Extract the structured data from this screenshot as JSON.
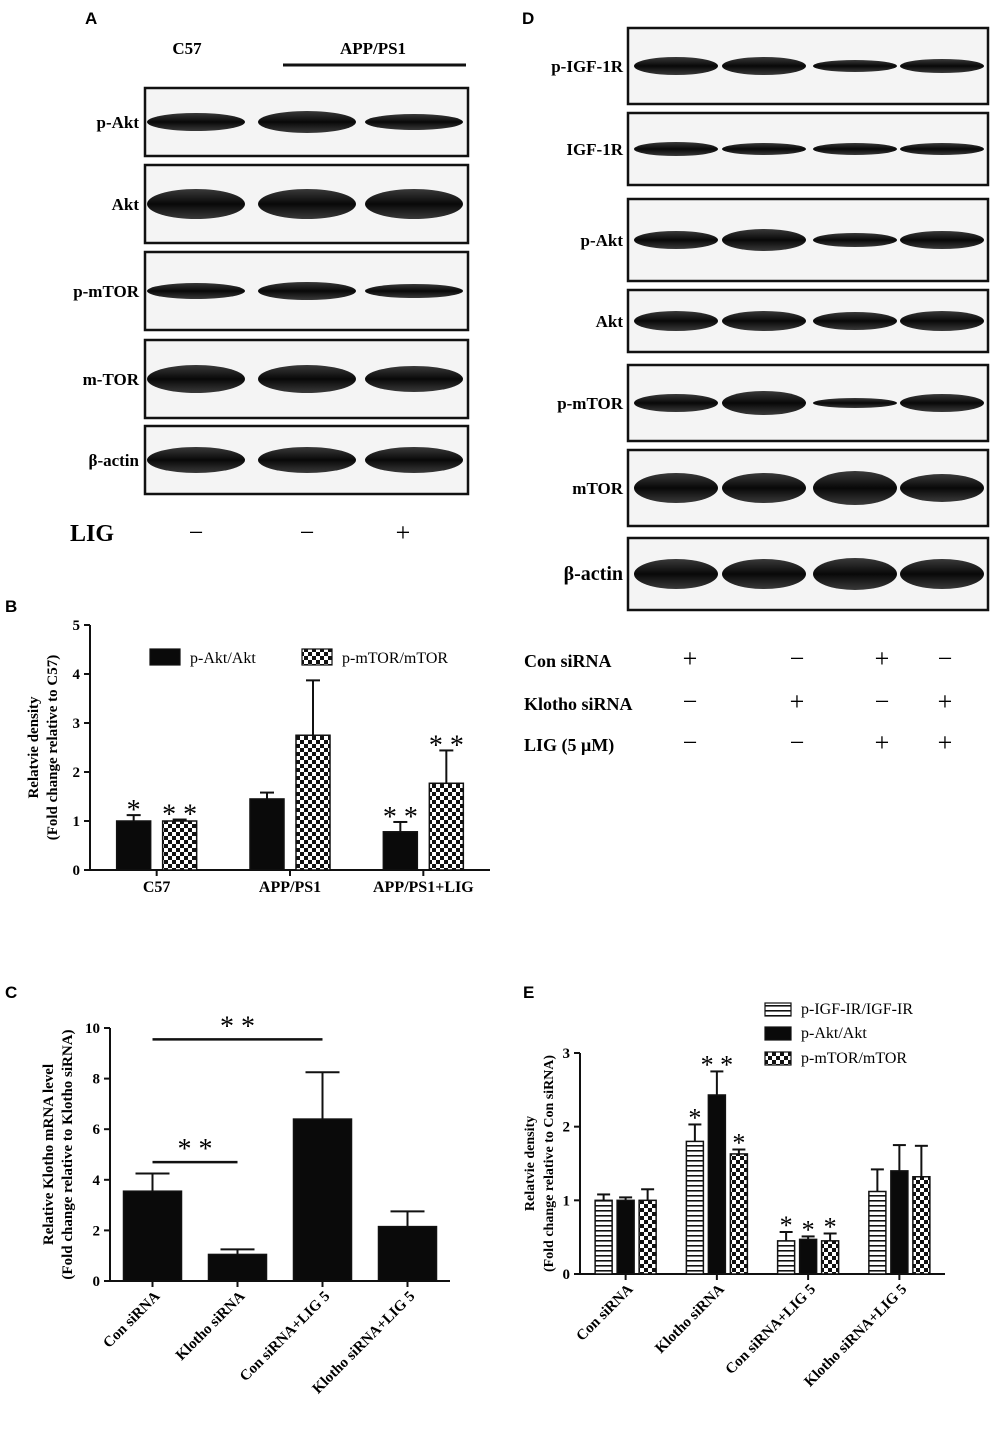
{
  "panels": {
    "A": {
      "letter": "A",
      "groups": [
        "C57",
        "APP/PS1"
      ],
      "rows": [
        "p-Akt",
        "Akt",
        "p-mTOR",
        "m-TOR",
        "β-actin"
      ],
      "treatment": {
        "label": "LIG",
        "signs": [
          "−",
          "−",
          "+"
        ]
      }
    },
    "D": {
      "letter": "D",
      "rows": [
        "p-IGF-1R",
        "IGF-1R",
        "p-Akt",
        "Akt",
        "p-mTOR",
        "mTOR",
        "β-actin"
      ],
      "conditions": [
        {
          "label": "Con siRNA",
          "signs": [
            "+",
            "−",
            "+",
            "−"
          ]
        },
        {
          "label": "Klotho siRNA",
          "signs": [
            "−",
            "+",
            "−",
            "+"
          ]
        },
        {
          "label": "LIG (5 μM)",
          "signs": [
            "−",
            "−",
            "+",
            "+"
          ]
        }
      ]
    }
  },
  "chart_data": [
    {
      "panel": "B",
      "type": "bar",
      "categories": [
        "C57",
        "APP/PS1",
        "APP/PS1+LIG"
      ],
      "series": [
        {
          "name": "p-Akt/Akt",
          "pattern": "solid",
          "values": [
            1.0,
            1.45,
            0.78
          ],
          "errors": [
            0.12,
            0.13,
            0.2
          ],
          "marks": [
            "*",
            "",
            "**"
          ]
        },
        {
          "name": "p-mTOR/mTOR",
          "pattern": "checker",
          "values": [
            1.0,
            2.75,
            1.77
          ],
          "errors": [
            0.03,
            1.12,
            0.67
          ],
          "marks": [
            "**",
            "",
            "**"
          ]
        }
      ],
      "ylabel": [
        "Relatvie density",
        "(Fold change relative to C57)"
      ],
      "ylim": [
        0,
        5
      ],
      "yticks": [
        "0",
        "1",
        "2",
        "3",
        "4",
        "5"
      ],
      "legend": "top"
    },
    {
      "panel": "C",
      "type": "bar",
      "categories": [
        "Con siRNA",
        "Klotho siRNA",
        "Con siRNA+LIG 5",
        "Klotho siRNA+LIG 5"
      ],
      "series": [
        {
          "pattern": "solid",
          "values": [
            3.55,
            1.05,
            6.4,
            2.15
          ],
          "errors": [
            0.7,
            0.2,
            1.85,
            0.6
          ]
        }
      ],
      "ylabel": [
        "Relative  Klotho mRNA level",
        "(Fold change relative to Klotho siRNA)"
      ],
      "ylim": [
        0,
        10
      ],
      "yticks": [
        "0",
        "2",
        "4",
        "6",
        "8",
        "10"
      ],
      "brackets": [
        {
          "from": 0,
          "to": 1,
          "y": 4.7,
          "mark": "**"
        },
        {
          "from": 0,
          "to": 2,
          "y": 9.55,
          "mark": "**"
        }
      ]
    },
    {
      "panel": "E",
      "type": "bar",
      "categories": [
        "Con siRNA",
        "Klotho siRNA",
        "Con siRNA+LIG 5",
        "Klotho siRNA+LIG 5"
      ],
      "series": [
        {
          "name": "p-IGF-IR/IGF-IR",
          "pattern": "stripes",
          "values": [
            1.0,
            1.8,
            0.45,
            1.12
          ],
          "errors": [
            0.08,
            0.23,
            0.12,
            0.3
          ],
          "marks": [
            "",
            "*",
            "*",
            ""
          ]
        },
        {
          "name": "p-Akt/Akt",
          "pattern": "solid",
          "values": [
            1.0,
            2.43,
            0.47,
            1.4
          ],
          "errors": [
            0.04,
            0.32,
            0.04,
            0.35
          ],
          "marks": [
            "",
            "**",
            "*",
            ""
          ]
        },
        {
          "name": "p-mTOR/mTOR",
          "pattern": "checker",
          "values": [
            1.0,
            1.63,
            0.45,
            1.32
          ],
          "errors": [
            0.15,
            0.06,
            0.1,
            0.42
          ],
          "marks": [
            "",
            "*",
            "*",
            ""
          ]
        }
      ],
      "ylabel": [
        "Relatvie density",
        "(Fold change relative to Con siRNA)"
      ],
      "ylim": [
        0,
        3
      ],
      "yticks": [
        "0",
        "1",
        "2",
        "3"
      ],
      "legend": "top-right"
    }
  ],
  "panel_letters": {
    "B": "B",
    "C": "C",
    "E": "E"
  }
}
